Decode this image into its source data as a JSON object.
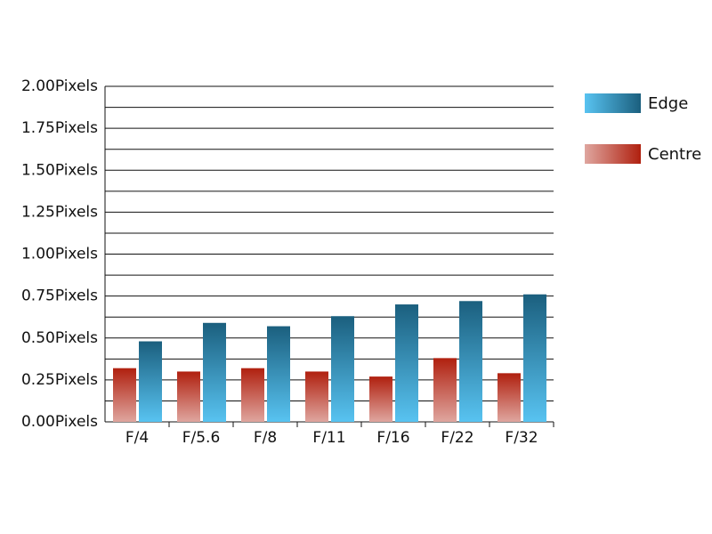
{
  "chart_data": {
    "type": "bar",
    "categories": [
      "F/4",
      "F/5.6",
      "F/8",
      "F/11",
      "F/16",
      "F/22",
      "F/32"
    ],
    "series": [
      {
        "name": "Edge",
        "color": "#1b5f7e",
        "values": [
          0.48,
          0.59,
          0.57,
          0.63,
          0.7,
          0.72,
          0.76
        ]
      },
      {
        "name": "Centre",
        "color": "#b0200f",
        "values": [
          0.32,
          0.3,
          0.32,
          0.3,
          0.27,
          0.38,
          0.29
        ]
      }
    ],
    "ylim": [
      0,
      2
    ],
    "yticks": [
      {
        "value": 0,
        "label": "0.00Pixels"
      },
      {
        "value": 0.25,
        "label": "0.25Pixels"
      },
      {
        "value": 0.5,
        "label": "0.50Pixels"
      },
      {
        "value": 0.75,
        "label": "0.75Pixels"
      },
      {
        "value": 1,
        "label": "1.00Pixels"
      },
      {
        "value": 1.25,
        "label": "1.25Pixels"
      },
      {
        "value": 1.5,
        "label": "1.50Pixels"
      },
      {
        "value": 1.75,
        "label": "1.75Pixels"
      },
      {
        "value": 2,
        "label": "2.00Pixels"
      }
    ],
    "minor_yticks": [
      0.125,
      0.375,
      0.625,
      0.875,
      1.125,
      1.375,
      1.625,
      1.875
    ],
    "grid": true,
    "legend": "right"
  }
}
